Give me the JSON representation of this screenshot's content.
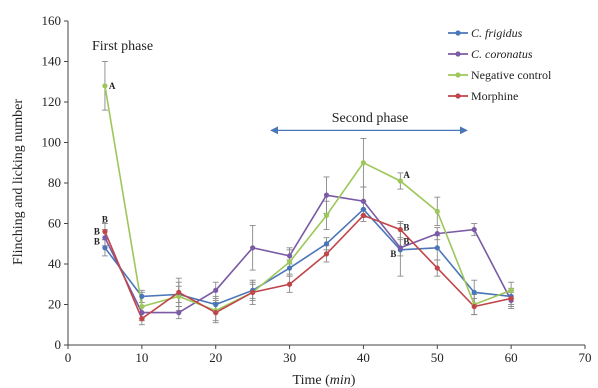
{
  "chart_data": {
    "type": "line",
    "xlabel": "Time (min)",
    "ylabel": "Flinching and licking number",
    "xlim": [
      0,
      70
    ],
    "ylim": [
      0,
      160
    ],
    "xticks": [
      "0",
      "10",
      "20",
      "30",
      "40",
      "50",
      "60",
      "70"
    ],
    "yticks": [
      "0",
      "20",
      "40",
      "60",
      "80",
      "100",
      "120",
      "140",
      "160"
    ],
    "x": [
      5,
      10,
      15,
      20,
      25,
      30,
      35,
      40,
      45,
      50,
      55,
      60
    ],
    "series": [
      {
        "name": "C. frigidus",
        "color": "#4a76b8",
        "values": [
          48,
          24,
          25,
          20,
          27,
          38,
          50,
          67,
          47,
          48,
          26,
          24
        ],
        "errors": [
          4,
          3,
          4,
          4,
          4,
          4,
          3,
          4,
          13,
          6,
          6,
          4
        ]
      },
      {
        "name": "C. coronatus",
        "color": "#7b5aa6",
        "values": [
          53,
          16,
          16,
          27,
          48,
          44,
          74,
          71,
          48,
          55,
          57,
          22
        ],
        "errors": [
          4,
          3,
          3,
          4,
          11,
          4,
          9,
          7,
          4,
          3,
          3,
          4
        ]
      },
      {
        "name": "Negative control",
        "color": "#9dc75a",
        "values": [
          128,
          19,
          24,
          17,
          26,
          41,
          64,
          90,
          81,
          66,
          20,
          27
        ],
        "errors": [
          12,
          7,
          7,
          5,
          6,
          6,
          7,
          12,
          4,
          7,
          5,
          4
        ]
      },
      {
        "name": "Morphine",
        "color": "#c0464a",
        "values": [
          56,
          13,
          26,
          16,
          26,
          30,
          45,
          64,
          57,
          38,
          19,
          23
        ],
        "errors": [
          4,
          3,
          7,
          5,
          4,
          4,
          4,
          3,
          4,
          4,
          4,
          4
        ]
      }
    ],
    "annotations": [
      {
        "text": "First phase"
      },
      {
        "text": "Second phase"
      },
      {
        "text": "A"
      },
      {
        "text": "B"
      },
      {
        "text": "B"
      },
      {
        "text": "B"
      },
      {
        "text": "A"
      },
      {
        "text": "B"
      },
      {
        "text": "B"
      },
      {
        "text": "B"
      }
    ],
    "legend_position": "top-right",
    "grid": false
  }
}
